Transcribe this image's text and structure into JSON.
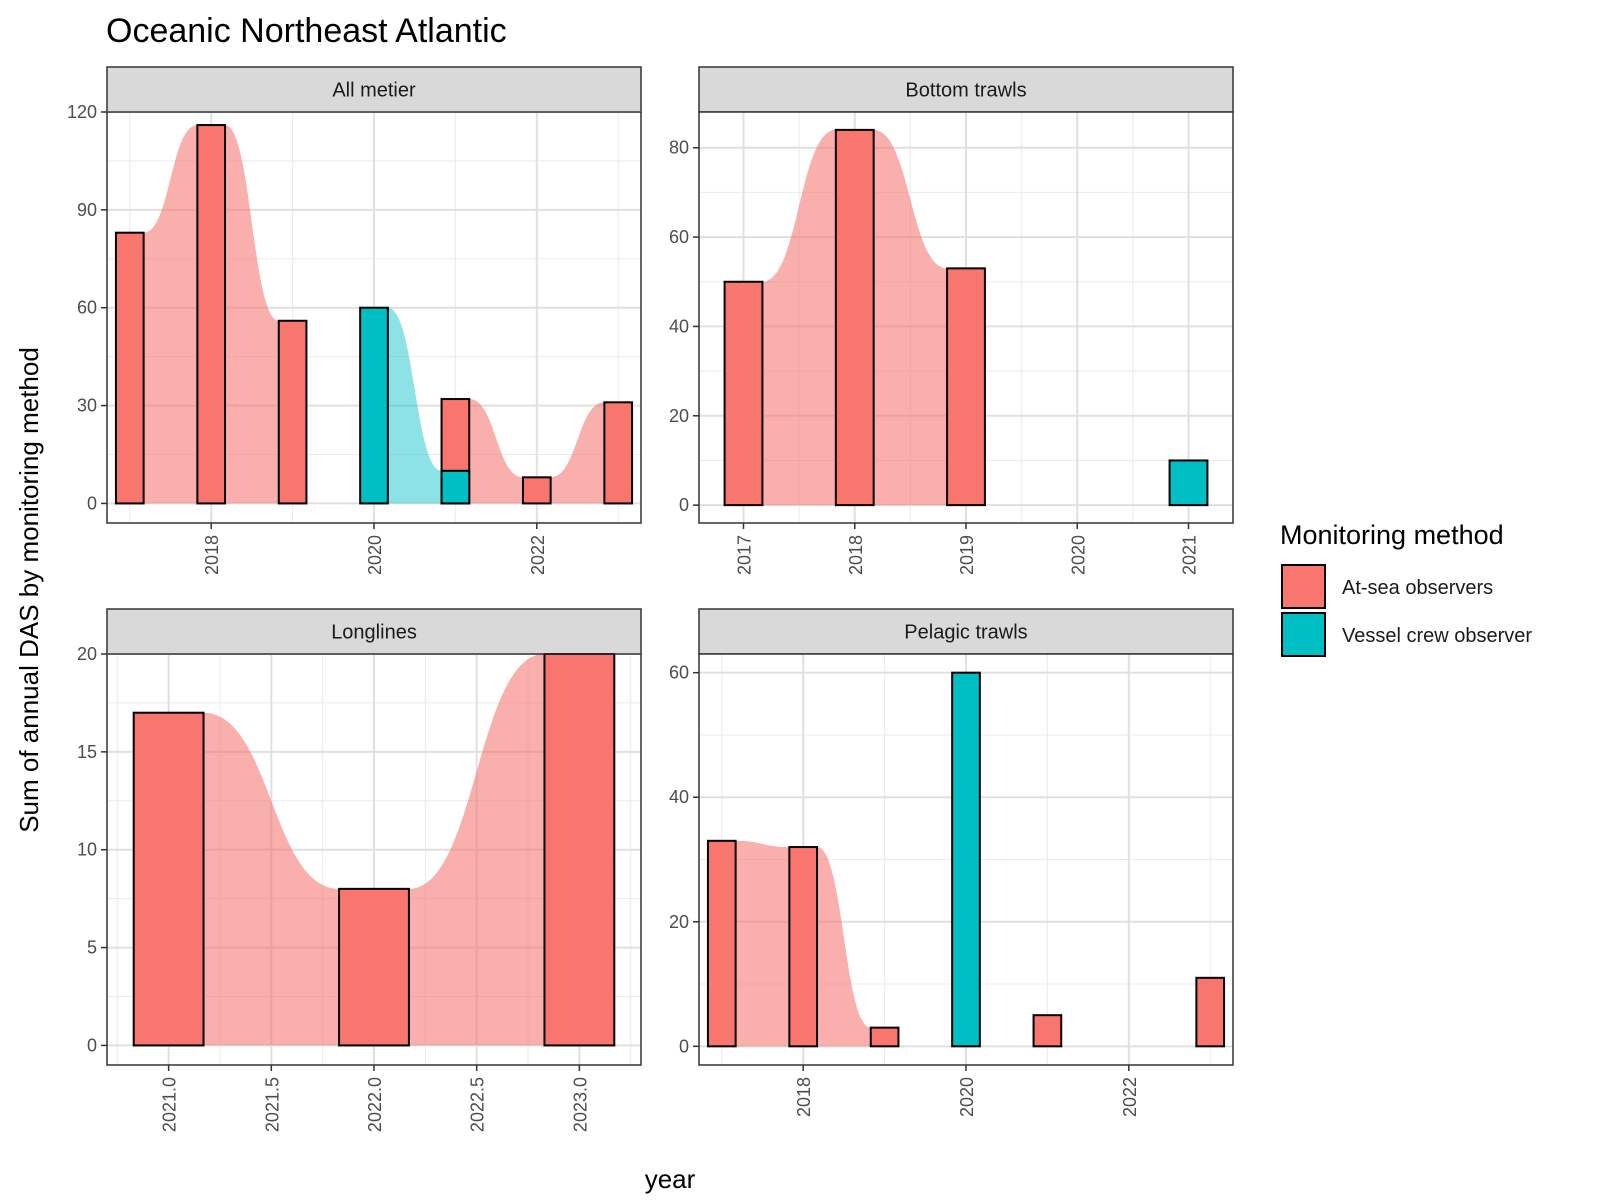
{
  "chart_data": {
    "type": "bar",
    "title": "Oceanic Northeast Atlantic",
    "xlabel": "year",
    "ylabel": "Sum of annual DAS by monitoring method",
    "legend": {
      "title": "Monitoring method",
      "placement": "right",
      "entries": [
        {
          "name": "At-sea observers",
          "color": "#F8766D"
        },
        {
          "name": "Vessel crew observer",
          "color": "#00BFC4"
        }
      ]
    },
    "facets": [
      {
        "strip": "All metier",
        "xlim": [
          2016.72,
          2023.28
        ],
        "ylim": [
          -6,
          120
        ],
        "yticks": [
          0,
          30,
          60,
          90,
          120
        ],
        "yminor": [
          15,
          45,
          75,
          105
        ],
        "xticks": [
          2018,
          2020,
          2022
        ],
        "xtick_labels": [
          "2018",
          "2020",
          "2022"
        ],
        "xminor": [
          2017,
          2019,
          2021,
          2023
        ],
        "bar_width": 0.34,
        "series": [
          {
            "name": "At-sea observers",
            "x": [
              2017,
              2018,
              2019,
              2021,
              2022,
              2023
            ],
            "values": [
              83,
              116,
              56,
              32,
              8,
              31
            ]
          },
          {
            "name": "Vessel crew observer",
            "x": [
              2020,
              2021
            ],
            "values": [
              60,
              10
            ]
          }
        ]
      },
      {
        "strip": "Bottom trawls",
        "xlim": [
          2016.6,
          2021.4
        ],
        "ylim": [
          -4,
          88
        ],
        "yticks": [
          0,
          20,
          40,
          60,
          80
        ],
        "yminor": [
          10,
          30,
          50,
          70
        ],
        "xticks": [
          2017,
          2018,
          2019,
          2020,
          2021
        ],
        "xtick_labels": [
          "2017",
          "2018",
          "2019",
          "2020",
          "2021"
        ],
        "xminor": [
          2017.5,
          2018.5,
          2019.5,
          2020.5
        ],
        "bar_width": 0.34,
        "series": [
          {
            "name": "At-sea observers",
            "x": [
              2017,
              2018,
              2019
            ],
            "values": [
              50,
              84,
              53
            ]
          },
          {
            "name": "Vessel crew observer",
            "x": [
              2021
            ],
            "values": [
              10
            ]
          }
        ]
      },
      {
        "strip": "Longlines",
        "xlim": [
          2020.7,
          2023.3
        ],
        "ylim": [
          -1,
          20
        ],
        "yticks": [
          0,
          5,
          10,
          15,
          20
        ],
        "yminor": [
          2.5,
          7.5,
          12.5,
          17.5
        ],
        "xticks": [
          2021.0,
          2021.5,
          2022.0,
          2022.5,
          2023.0
        ],
        "xtick_labels": [
          "2021.0",
          "2021.5",
          "2022.0",
          "2022.5",
          "2023.0"
        ],
        "xminor": [
          2020.75,
          2021.25,
          2021.75,
          2022.25,
          2022.75,
          2023.25
        ],
        "bar_width": 0.34,
        "series": [
          {
            "name": "At-sea observers",
            "x": [
              2021,
              2022,
              2023
            ],
            "values": [
              17,
              8,
              20
            ]
          }
        ]
      },
      {
        "strip": "Pelagic trawls",
        "xlim": [
          2016.72,
          2023.28
        ],
        "ylim": [
          -3,
          63
        ],
        "yticks": [
          0,
          20,
          40,
          60
        ],
        "yminor": [
          10,
          30,
          50
        ],
        "xticks": [
          2018,
          2020,
          2022
        ],
        "xtick_labels": [
          "2018",
          "2020",
          "2022"
        ],
        "xminor": [
          2017,
          2019,
          2021,
          2023
        ],
        "bar_width": 0.34,
        "series": [
          {
            "name": "At-sea observers",
            "x": [
              2017,
              2018,
              2019,
              2021,
              2023
            ],
            "values": [
              33,
              32,
              3,
              5,
              11
            ]
          },
          {
            "name": "Vessel crew observer",
            "x": [
              2020
            ],
            "values": [
              60
            ]
          }
        ]
      }
    ]
  }
}
